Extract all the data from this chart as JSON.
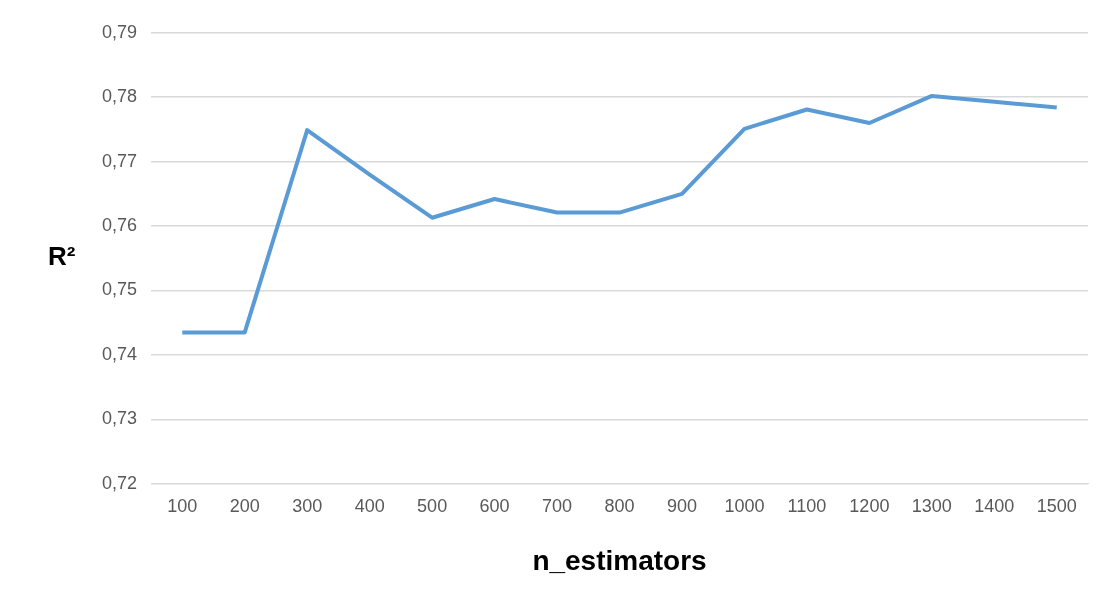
{
  "chart_data": {
    "type": "line",
    "xlabel": "n_estimators",
    "ylabel": "R²",
    "categories": [
      "100",
      "200",
      "300",
      "400",
      "500",
      "600",
      "700",
      "800",
      "900",
      "1000",
      "1100",
      "1200",
      "1300",
      "1400",
      "1500"
    ],
    "series": [
      {
        "color": "#5b9bd5",
        "values": [
          0.7435,
          0.7435,
          0.7749,
          0.768,
          0.7613,
          0.7642,
          0.7621,
          0.7621,
          0.765,
          0.7751,
          0.7781,
          0.776,
          0.7802,
          0.7793,
          0.7784
        ]
      }
    ],
    "ylim": [
      0.72,
      0.79
    ],
    "yticks": [
      {
        "value": 0.72,
        "label": "0,72"
      },
      {
        "value": 0.73,
        "label": "0,73"
      },
      {
        "value": 0.74,
        "label": "0,74"
      },
      {
        "value": 0.75,
        "label": "0,75"
      },
      {
        "value": 0.76,
        "label": "0,76"
      },
      {
        "value": 0.77,
        "label": "0,77"
      },
      {
        "value": 0.78,
        "label": "0,78"
      },
      {
        "value": 0.79,
        "label": "0,79"
      }
    ],
    "grid": "y",
    "legend": false,
    "marker": "none",
    "line_style": "solid"
  }
}
